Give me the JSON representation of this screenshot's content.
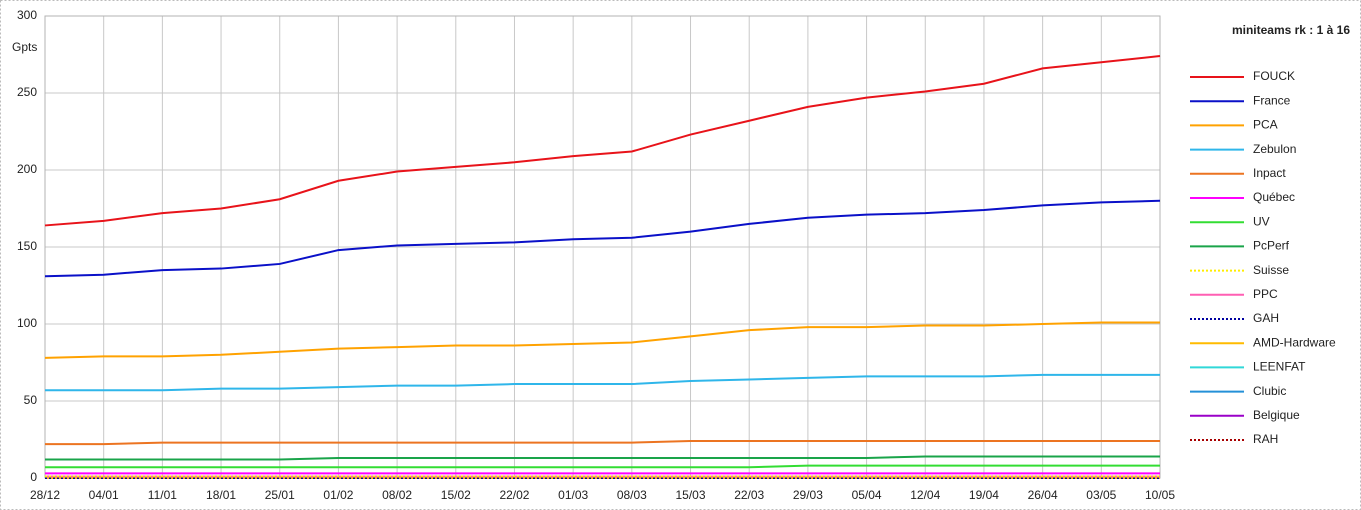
{
  "chart_data": {
    "type": "line",
    "title": "miniteams rk : 1 à 16",
    "y_label": "Gpts",
    "categories": [
      "28/12",
      "04/01",
      "11/01",
      "18/01",
      "25/01",
      "01/02",
      "08/02",
      "15/02",
      "22/02",
      "01/03",
      "08/03",
      "15/03",
      "22/03",
      "29/03",
      "05/04",
      "12/04",
      "19/04",
      "26/04",
      "03/05",
      "10/05"
    ],
    "ylim": [
      0,
      300
    ],
    "yticks": [
      0,
      50,
      100,
      150,
      200,
      250,
      300
    ],
    "grid": true,
    "legend": "right",
    "series": [
      {
        "name": "FOUCK",
        "color": "#e8131a",
        "values": [
          164,
          167,
          172,
          175,
          181,
          193,
          199,
          202,
          205,
          209,
          212,
          223,
          232,
          241,
          247,
          251,
          256,
          266,
          270,
          274
        ]
      },
      {
        "name": "France",
        "color": "#0a10c8",
        "values": [
          131,
          132,
          135,
          136,
          139,
          148,
          151,
          152,
          153,
          155,
          156,
          160,
          165,
          169,
          171,
          172,
          174,
          177,
          179,
          180
        ]
      },
      {
        "name": "PCA",
        "color": "#ffa200",
        "values": [
          78,
          79,
          79,
          80,
          82,
          84,
          85,
          86,
          86,
          87,
          88,
          92,
          96,
          98,
          98,
          99,
          99,
          100,
          101,
          101
        ]
      },
      {
        "name": "Zebulon",
        "color": "#2fb6ea",
        "values": [
          57,
          57,
          57,
          58,
          58,
          59,
          60,
          60,
          61,
          61,
          61,
          63,
          64,
          65,
          66,
          66,
          66,
          67,
          67,
          67
        ]
      },
      {
        "name": "Inpact",
        "color": "#ec7421",
        "values": [
          22,
          22,
          23,
          23,
          23,
          23,
          23,
          23,
          23,
          23,
          23,
          24,
          24,
          24,
          24,
          24,
          24,
          24,
          24,
          24
        ]
      },
      {
        "name": "Québec",
        "color": "#ff00ff",
        "values": [
          3,
          3,
          3,
          3,
          3,
          3,
          3,
          3,
          3,
          3,
          3,
          3,
          3,
          3,
          3,
          3,
          3,
          3,
          3,
          3
        ]
      },
      {
        "name": "UV",
        "color": "#33dd33",
        "values": [
          7,
          7,
          7,
          7,
          7,
          7,
          7,
          7,
          7,
          7,
          7,
          7,
          7,
          8,
          8,
          8,
          8,
          8,
          8,
          8
        ]
      },
      {
        "name": "PcPerf",
        "color": "#1aa44a",
        "values": [
          12,
          12,
          12,
          12,
          12,
          13,
          13,
          13,
          13,
          13,
          13,
          13,
          13,
          13,
          13,
          14,
          14,
          14,
          14,
          14
        ]
      },
      {
        "name": "Suisse",
        "color": "#ffee00",
        "style": "dotted",
        "values": [
          1,
          1,
          1,
          1,
          1,
          1,
          1,
          1,
          1,
          1,
          1,
          1,
          1,
          1,
          1,
          1,
          1,
          1,
          1,
          1
        ]
      },
      {
        "name": "PPC",
        "color": "#ff5fb3",
        "values": [
          1,
          1,
          1,
          1,
          1,
          1,
          1,
          1,
          1,
          1,
          1,
          1,
          1,
          1,
          1,
          1,
          1,
          1,
          1,
          1
        ]
      },
      {
        "name": "GAH",
        "color": "#0000a0",
        "style": "dotted",
        "values": [
          0,
          0,
          0,
          0,
          0,
          0,
          0,
          0,
          0,
          0,
          0,
          0,
          0,
          0,
          0,
          0,
          0,
          0,
          0,
          0
        ]
      },
      {
        "name": "AMD-Hardware",
        "color": "#ffbb00",
        "values": [
          0,
          0,
          0,
          0,
          0,
          0,
          0,
          0,
          0,
          0,
          0,
          0,
          0,
          0,
          0,
          0,
          0,
          0,
          0,
          0
        ]
      },
      {
        "name": "LEENFAT",
        "color": "#30d8d8",
        "values": [
          0,
          0,
          0,
          0,
          0,
          0,
          0,
          0,
          0,
          0,
          0,
          0,
          0,
          0,
          0,
          0,
          0,
          0,
          0,
          0
        ]
      },
      {
        "name": "Clubic",
        "color": "#2490d8",
        "values": [
          0,
          0,
          0,
          0,
          0,
          0,
          0,
          0,
          0,
          0,
          0,
          0,
          0,
          0,
          0,
          0,
          0,
          0,
          0,
          0
        ]
      },
      {
        "name": "Belgique",
        "color": "#9a00c8",
        "values": [
          1,
          1,
          1,
          1,
          1,
          1,
          1,
          1,
          1,
          1,
          1,
          1,
          1,
          1,
          1,
          1,
          1,
          1,
          1,
          1
        ]
      },
      {
        "name": "RAH",
        "color": "#a80000",
        "style": "dotted",
        "values": [
          1,
          1,
          1,
          1,
          1,
          1,
          1,
          1,
          1,
          1,
          1,
          1,
          1,
          1,
          1,
          1,
          1,
          1,
          1,
          1
        ]
      }
    ]
  }
}
